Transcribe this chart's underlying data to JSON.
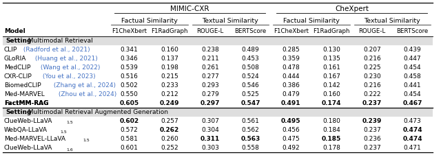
{
  "title_top": "MIMIC-CXR",
  "title_top2": "CheXpert",
  "col_group1": "Factual Similarity",
  "col_group2": "Textual Similarity",
  "col_group3": "Factual Similarity",
  "col_group4": "Textual Similarity",
  "col_headers": [
    "F1CheXbert",
    "F1RadGraph",
    "ROUGE-L",
    "BERTScore",
    "F1CheXbert",
    "F1RadGraph",
    "ROUGE-L",
    "BERTScore"
  ],
  "section1_label": "Setting: Multimodal Retrieval",
  "section2_label": "Setting: Multimodal Retrieval Augmented Generation",
  "rows_section1": [
    {
      "model_main": "CLIP",
      "model_cite": " (Radford et al., 2021)",
      "values": [
        "0.341",
        "0.160",
        "0.238",
        "0.489",
        "0.285",
        "0.130",
        "0.207",
        "0.439"
      ],
      "bold": [],
      "bold_model": false
    },
    {
      "model_main": "GLoRIA",
      "model_cite": " (Huang et al., 2021)",
      "values": [
        "0.346",
        "0.137",
        "0.211",
        "0.453",
        "0.359",
        "0.135",
        "0.216",
        "0.447"
      ],
      "bold": [],
      "bold_model": false
    },
    {
      "model_main": "MedCLIP",
      "model_cite": " (Wang et al., 2022)",
      "values": [
        "0.539",
        "0.198",
        "0.261",
        "0.508",
        "0.478",
        "0.161",
        "0.225",
        "0.454"
      ],
      "bold": [],
      "bold_model": false
    },
    {
      "model_main": "CXR-CLIP",
      "model_cite": " (You et al., 2023)",
      "values": [
        "0.516",
        "0.215",
        "0.277",
        "0.524",
        "0.444",
        "0.167",
        "0.230",
        "0.458"
      ],
      "bold": [],
      "bold_model": false
    },
    {
      "model_main": "BiomedCLIP",
      "model_cite": " (Zhang et al., 2024)",
      "values": [
        "0.502",
        "0.233",
        "0.293",
        "0.546",
        "0.386",
        "0.142",
        "0.216",
        "0.441"
      ],
      "bold": [],
      "bold_model": false
    },
    {
      "model_main": "Med-MARVEL",
      "model_cite": " (Zhou et al., 2024)",
      "values": [
        "0.550",
        "0.212",
        "0.279",
        "0.525",
        "0.479",
        "0.160",
        "0.222",
        "0.454"
      ],
      "bold": [],
      "bold_model": false
    },
    {
      "model_main": "FactMM-RAG",
      "model_cite": "",
      "values": [
        "0.605",
        "0.249",
        "0.297",
        "0.547",
        "0.491",
        "0.174",
        "0.237",
        "0.467"
      ],
      "bold": [
        0,
        1,
        2,
        3,
        4,
        5,
        6,
        7
      ],
      "bold_model": true
    }
  ],
  "rows_section2": [
    {
      "model_main": "ClueWeb-LLaVA",
      "subscript": "1.5",
      "values": [
        "0.602",
        "0.257",
        "0.307",
        "0.561",
        "0.495",
        "0.180",
        "0.239",
        "0.473"
      ],
      "bold": [
        0,
        4,
        6
      ]
    },
    {
      "model_main": "WebQA-LLaVA",
      "subscript": "1.5",
      "values": [
        "0.572",
        "0.262",
        "0.304",
        "0.562",
        "0.456",
        "0.184",
        "0.237",
        "0.474"
      ],
      "bold": [
        1,
        7
      ]
    },
    {
      "model_main": "Med-MARVEL-LLaVA",
      "subscript": "1.5",
      "values": [
        "0.581",
        "0.260",
        "0.311",
        "0.563",
        "0.475",
        "0.185",
        "0.236",
        "0.474"
      ],
      "bold": [
        2,
        3,
        5,
        7
      ]
    },
    {
      "model_main": "ClueWeb-LLaVA",
      "subscript": "1.6",
      "values": [
        "0.601",
        "0.252",
        "0.303",
        "0.558",
        "0.492",
        "0.178",
        "0.237",
        "0.471"
      ],
      "bold": []
    }
  ],
  "bg_color": "#ffffff",
  "cite_color": "#4472C4",
  "section_bg": "#dedede"
}
